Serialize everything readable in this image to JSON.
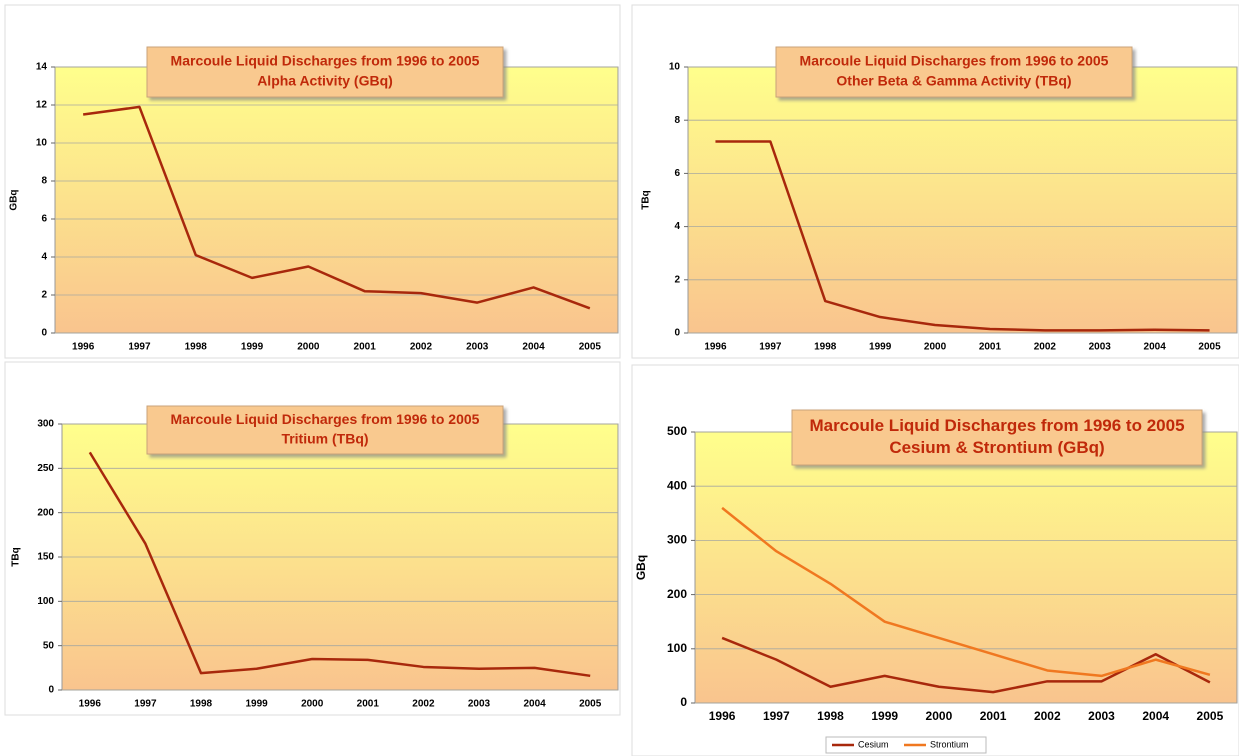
{
  "chart_data": [
    {
      "type": "line",
      "title": "Marcoule Liquid Discharges from 1996 to 2005",
      "subtitle": "Alpha Activity (GBq)",
      "y_label": "GBq",
      "categories": [
        "1996",
        "1997",
        "1998",
        "1999",
        "2000",
        "2001",
        "2002",
        "2003",
        "2004",
        "2005"
      ],
      "series": [
        {
          "name": "Alpha",
          "color": "#a8280c",
          "values": [
            11.5,
            11.9,
            4.1,
            2.9,
            3.5,
            2.2,
            2.1,
            1.6,
            2.4,
            1.3
          ]
        }
      ],
      "ylim": [
        0,
        14
      ],
      "yticks": [
        0,
        2,
        4,
        6,
        8,
        10,
        12,
        14
      ],
      "grid": true
    },
    {
      "type": "line",
      "title": "Marcoule Liquid Discharges from 1996 to 2005",
      "subtitle": "Other Beta & Gamma Activity (TBq)",
      "y_label": "TBq",
      "categories": [
        "1996",
        "1997",
        "1998",
        "1999",
        "2000",
        "2001",
        "2002",
        "2003",
        "2004",
        "2005"
      ],
      "series": [
        {
          "name": "Beta Gamma",
          "color": "#a8280c",
          "values": [
            7.2,
            7.2,
            1.2,
            0.6,
            0.3,
            0.15,
            0.1,
            0.1,
            0.12,
            0.1
          ]
        }
      ],
      "ylim": [
        0,
        10
      ],
      "yticks": [
        0,
        2,
        4,
        6,
        8,
        10
      ],
      "grid": true
    },
    {
      "type": "line",
      "title": "Marcoule Liquid Discharges from 1996 to 2005",
      "subtitle": "Tritium (TBq)",
      "y_label": "TBq",
      "categories": [
        "1996",
        "1997",
        "1998",
        "1999",
        "2000",
        "2001",
        "2002",
        "2003",
        "2004",
        "2005"
      ],
      "series": [
        {
          "name": "Tritium",
          "color": "#a8280c",
          "values": [
            268,
            165,
            19,
            24,
            35,
            34,
            26,
            24,
            25,
            16
          ]
        }
      ],
      "ylim": [
        0,
        300
      ],
      "yticks": [
        0,
        50,
        100,
        150,
        200,
        250,
        300
      ],
      "grid": true
    },
    {
      "type": "line",
      "title": "Marcoule Liquid Discharges from 1996 to 2005",
      "subtitle": "Cesium & Strontium (GBq)",
      "y_label": "GBq",
      "categories": [
        "1996",
        "1997",
        "1998",
        "1999",
        "2000",
        "2001",
        "2002",
        "2003",
        "2004",
        "2005"
      ],
      "series": [
        {
          "name": "Cesium",
          "color": "#a8280c",
          "values": [
            120,
            80,
            30,
            50,
            30,
            20,
            40,
            40,
            90,
            38
          ]
        },
        {
          "name": "Strontium",
          "color": "#f07820",
          "values": [
            360,
            280,
            220,
            150,
            120,
            90,
            60,
            50,
            80,
            52
          ]
        }
      ],
      "ylim": [
        0,
        500
      ],
      "yticks": [
        0,
        100,
        200,
        300,
        400,
        500
      ],
      "grid": true,
      "legend": "bottom"
    }
  ]
}
